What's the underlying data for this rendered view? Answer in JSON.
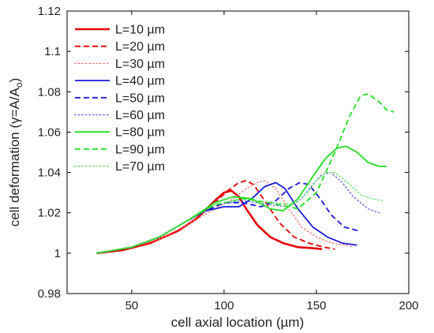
{
  "chart_data": {
    "type": "line",
    "xlabel": "cell axial location (µm)",
    "ylabel": "cell deformation (γ=A/A",
    "ylabel_sub": "o",
    "ylabel_close": ")",
    "xlim": [
      15,
      200
    ],
    "ylim": [
      0.98,
      1.12
    ],
    "xticks": [
      "50",
      "100",
      "150",
      "200"
    ],
    "xtick_values": [
      50,
      100,
      150,
      200
    ],
    "yticks": [
      "0.98",
      "1",
      "1.02",
      "1.04",
      "1.06",
      "1.08",
      "1.1",
      "1.12"
    ],
    "ytick_values": [
      0.98,
      1.0,
      1.02,
      1.04,
      1.06,
      1.08,
      1.1,
      1.12
    ],
    "grid": false,
    "legend_position": "top-left",
    "series": [
      {
        "name": "L=10 µm",
        "color": "#e60000",
        "dash": "solid",
        "width": 2.6,
        "x": [
          31,
          45,
          60,
          75,
          85,
          95,
          100,
          104,
          108,
          112,
          118,
          125,
          132,
          140,
          148,
          153
        ],
        "y": [
          1.0,
          1.0015,
          1.005,
          1.011,
          1.017,
          1.026,
          1.03,
          1.031,
          1.028,
          1.022,
          1.014,
          1.008,
          1.005,
          1.003,
          1.0025,
          1.002
        ]
      },
      {
        "name": "L=20 µm",
        "color": "#e60000",
        "dash": "dashed",
        "width": 1.8,
        "x": [
          31,
          45,
          60,
          75,
          85,
          95,
          102,
          108,
          112,
          116,
          122,
          130,
          138,
          146,
          154,
          160
        ],
        "y": [
          1.0,
          1.0015,
          1.005,
          1.011,
          1.017,
          1.025,
          1.031,
          1.035,
          1.036,
          1.034,
          1.026,
          1.015,
          1.008,
          1.005,
          1.003,
          1.002
        ]
      },
      {
        "name": "L=30 µm",
        "color": "#f07070",
        "dash": "dotted",
        "width": 1.3,
        "x": [
          31,
          50,
          65,
          80,
          95,
          105,
          112,
          118,
          122,
          128,
          135,
          142,
          150,
          158,
          166,
          170
        ],
        "y": [
          1.0,
          1.003,
          1.007,
          1.014,
          1.022,
          1.027,
          1.032,
          1.035,
          1.036,
          1.032,
          1.022,
          1.013,
          1.008,
          1.005,
          1.004,
          1.003
        ]
      },
      {
        "name": "L=40 µm",
        "color": "#1a1ad6",
        "dash": "solid",
        "width": 1.8,
        "x": [
          31,
          50,
          65,
          80,
          90,
          100,
          108,
          115,
          122,
          128,
          133,
          140,
          148,
          156,
          164,
          172
        ],
        "y": [
          1.0,
          1.003,
          1.008,
          1.016,
          1.021,
          1.023,
          1.023,
          1.027,
          1.033,
          1.035,
          1.032,
          1.022,
          1.013,
          1.008,
          1.005,
          1.004
        ]
      },
      {
        "name": "L=50 µm",
        "color": "#1a1ad6",
        "dash": "dashed",
        "width": 1.8,
        "x": [
          31,
          50,
          65,
          80,
          90,
          100,
          110,
          120,
          128,
          135,
          141,
          146,
          152,
          158,
          165,
          173
        ],
        "y": [
          1.0,
          1.003,
          1.008,
          1.016,
          1.021,
          1.025,
          1.025,
          1.023,
          1.026,
          1.032,
          1.035,
          1.034,
          1.027,
          1.019,
          1.013,
          1.011
        ]
      },
      {
        "name": "L=60 µm",
        "color": "#5a5ae6",
        "dash": "dotted",
        "width": 1.3,
        "x": [
          31,
          50,
          65,
          80,
          95,
          110,
          125,
          135,
          142,
          148,
          153,
          158,
          164,
          170,
          178,
          184
        ],
        "y": [
          1.0,
          1.003,
          1.008,
          1.016,
          1.024,
          1.026,
          1.024,
          1.023,
          1.027,
          1.034,
          1.039,
          1.04,
          1.035,
          1.028,
          1.022,
          1.02
        ]
      },
      {
        "name": "L=80 µm",
        "color": "#22dd22",
        "dash": "solid",
        "width": 1.8,
        "x": [
          31,
          50,
          65,
          80,
          95,
          105,
          115,
          125,
          132,
          140,
          148,
          155,
          161,
          166,
          172,
          178,
          184,
          188
        ],
        "y": [
          1.0,
          1.003,
          1.008,
          1.016,
          1.025,
          1.028,
          1.027,
          1.022,
          1.021,
          1.027,
          1.038,
          1.047,
          1.052,
          1.053,
          1.05,
          1.045,
          1.043,
          1.043
        ]
      },
      {
        "name": "L=90 µm",
        "color": "#22dd22",
        "dash": "dashed",
        "width": 1.8,
        "x": [
          31,
          50,
          65,
          80,
          95,
          110,
          125,
          140,
          150,
          160,
          168,
          174,
          178,
          184,
          188,
          192
        ],
        "y": [
          1.0,
          1.003,
          1.008,
          1.016,
          1.024,
          1.027,
          1.025,
          1.022,
          1.03,
          1.05,
          1.068,
          1.078,
          1.079,
          1.075,
          1.071,
          1.07
        ]
      },
      {
        "name": "L=70 µm",
        "color": "#55dd55",
        "dash": "dotted",
        "width": 1.3,
        "x": [
          31,
          50,
          65,
          80,
          95,
          110,
          125,
          138,
          145,
          150,
          155,
          160,
          167,
          174,
          180,
          186
        ],
        "y": [
          1.0,
          1.003,
          1.008,
          1.016,
          1.024,
          1.027,
          1.025,
          1.024,
          1.03,
          1.036,
          1.04,
          1.04,
          1.035,
          1.029,
          1.027,
          1.026
        ]
      }
    ]
  }
}
